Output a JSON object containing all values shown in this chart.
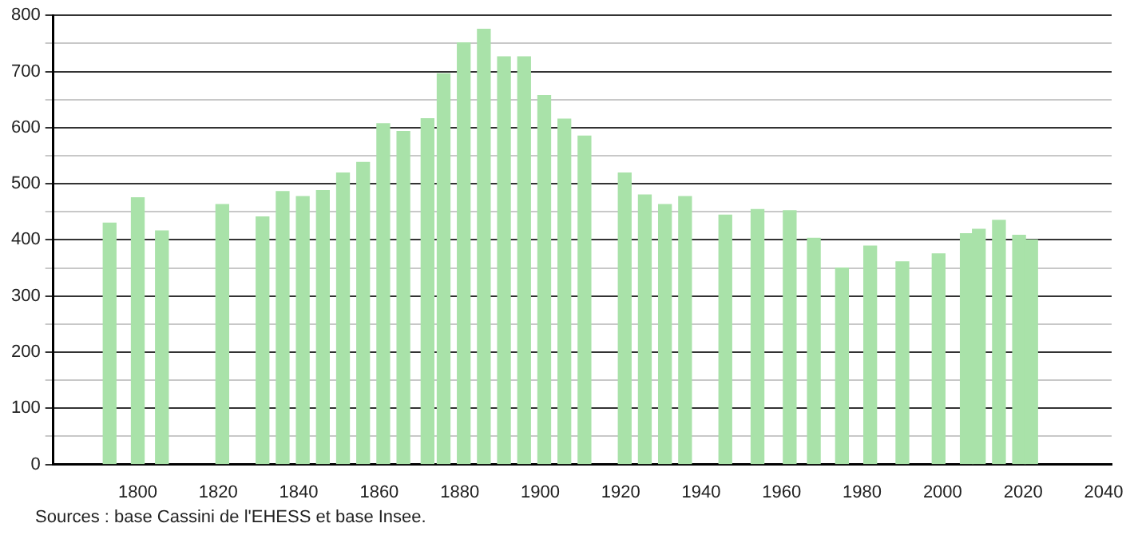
{
  "chart_data": {
    "type": "bar",
    "x": [
      1793,
      1800,
      1806,
      1821,
      1831,
      1836,
      1841,
      1846,
      1851,
      1856,
      1861,
      1866,
      1872,
      1876,
      1881,
      1886,
      1891,
      1896,
      1901,
      1906,
      1911,
      1921,
      1926,
      1931,
      1936,
      1946,
      1954,
      1962,
      1968,
      1975,
      1982,
      1990,
      1999,
      2006,
      2009,
      2014,
      2019,
      2022
    ],
    "series": [
      {
        "color": "#a9e2a9",
        "values": [
          430,
          475,
          416,
          463,
          441,
          486,
          477,
          488,
          519,
          538,
          607,
          593,
          616,
          696,
          751,
          775,
          726,
          726,
          657,
          615,
          585,
          519,
          480,
          463,
          477,
          444,
          454,
          452,
          403,
          350,
          389,
          361,
          375,
          411,
          419,
          435,
          408,
          400
        ]
      }
    ],
    "xlim": [
      1779,
      2042
    ],
    "xticks": [
      1800,
      1820,
      1840,
      1860,
      1880,
      1900,
      1920,
      1940,
      1960,
      1980,
      2000,
      2020,
      2040
    ],
    "ylim": [
      0,
      800
    ],
    "yticks": [
      0,
      {
        "value": 50,
        "label": null
      },
      100,
      {
        "value": 150,
        "label": null
      },
      200,
      {
        "value": 250,
        "label": null
      },
      300,
      {
        "value": 350,
        "label": null
      },
      400,
      {
        "value": 450,
        "label": null
      },
      500,
      {
        "value": 550,
        "label": null
      },
      600,
      {
        "value": 650,
        "label": null
      },
      700,
      {
        "value": 750,
        "label": null
      },
      800
    ],
    "grid": "y",
    "legend": false,
    "annotations": [
      "Sources : base Cassini de l'EHESS et base Insee."
    ]
  }
}
